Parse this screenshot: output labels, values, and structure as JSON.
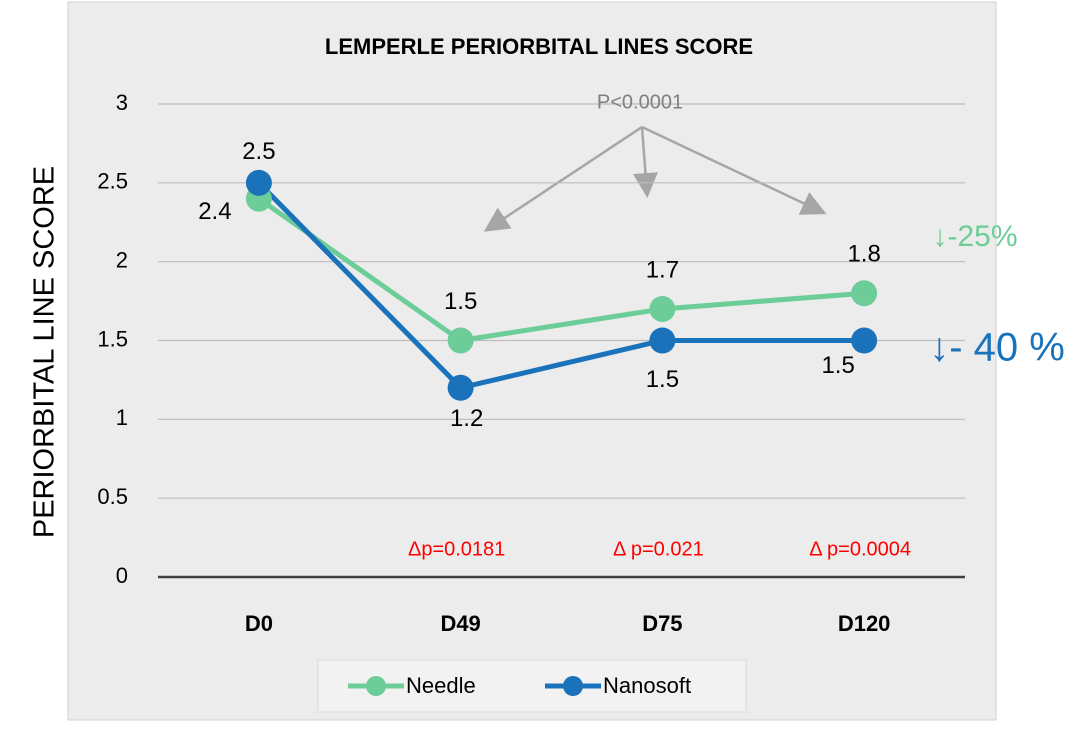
{
  "chart_data": {
    "type": "line",
    "title": "LEMPERLE PERIORBITAL LINES SCORE",
    "y_label": "PERIORBITAL LINE SCORE",
    "categories": [
      "D0",
      "D49",
      "D75",
      "D120"
    ],
    "series": [
      {
        "name": "Needle",
        "color": "#6dcd98",
        "values": [
          2.4,
          1.5,
          1.7,
          1.8
        ]
      },
      {
        "name": "Nanosoft",
        "color": "#1a72bb",
        "values": [
          2.5,
          1.2,
          1.5,
          1.5
        ]
      }
    ],
    "ylim": [
      0,
      3
    ],
    "yticks": [
      0,
      0.5,
      1,
      1.5,
      2,
      2.5,
      3
    ],
    "grid": true,
    "legend": "bottom",
    "annotations": {
      "overall_p": "P<0.0001",
      "delta_p": [
        "Δp=0.0181",
        "Δ p=0.021",
        "Δ p=0.0004"
      ],
      "needle_change": "↓-25%",
      "nanosoft_change": "↓- 40 %"
    }
  }
}
